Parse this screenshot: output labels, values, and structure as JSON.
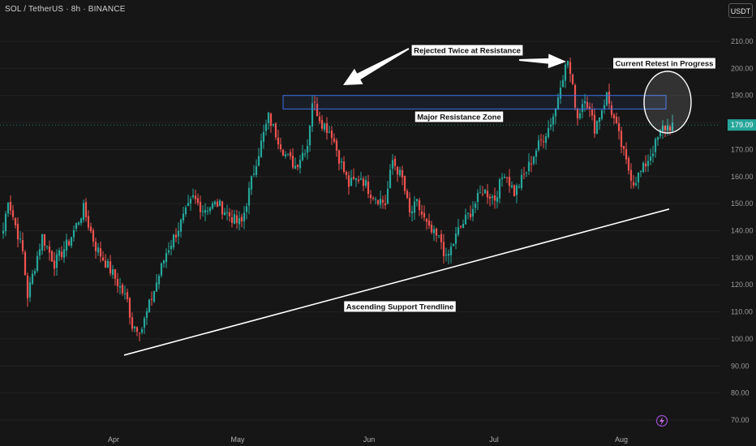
{
  "header": {
    "ticker": "SOL / TetherUS · 8h · BINANCE",
    "currency": "USDT"
  },
  "chart_data": {
    "type": "candlestick",
    "y_axis": {
      "ticks": [
        "210.00",
        "200.00",
        "190.00",
        "180.00",
        "170.00",
        "160.00",
        "150.00",
        "140.00",
        "130.00",
        "120.00",
        "110.00",
        "100.00",
        "90.00",
        "80.00",
        "70.00"
      ],
      "range": [
        68,
        213
      ]
    },
    "x_axis": {
      "ticks": [
        "Apr",
        "May",
        "Jun",
        "Jul",
        "Aug"
      ]
    },
    "last_price": "179.09",
    "colors": {
      "up": "#26a69a",
      "down": "#ef5350",
      "accent_resistance": "#3d6ee6",
      "last_price_tag": "#26a69a"
    },
    "price_path_waypoints": [
      [
        0,
        140
      ],
      [
        2,
        152
      ],
      [
        8,
        132
      ],
      [
        10,
        116
      ],
      [
        16,
        138
      ],
      [
        21,
        128
      ],
      [
        27,
        136
      ],
      [
        33,
        148
      ],
      [
        38,
        134
      ],
      [
        45,
        124
      ],
      [
        51,
        114
      ],
      [
        53,
        105
      ],
      [
        57,
        104
      ],
      [
        62,
        118
      ],
      [
        67,
        132
      ],
      [
        72,
        141
      ],
      [
        78,
        152
      ],
      [
        82,
        148
      ],
      [
        88,
        150
      ],
      [
        96,
        143
      ],
      [
        98,
        143
      ],
      [
        104,
        166
      ],
      [
        109,
        182
      ],
      [
        112,
        176
      ],
      [
        116,
        168
      ],
      [
        120,
        164
      ],
      [
        125,
        172
      ],
      [
        127,
        188
      ],
      [
        131,
        180
      ],
      [
        135,
        176
      ],
      [
        138,
        167
      ],
      [
        142,
        157
      ],
      [
        147,
        160
      ],
      [
        151,
        154
      ],
      [
        157,
        150
      ],
      [
        160,
        166
      ],
      [
        164,
        159
      ],
      [
        167,
        146
      ],
      [
        170,
        150
      ],
      [
        175,
        140
      ],
      [
        180,
        136
      ],
      [
        182,
        129
      ],
      [
        187,
        140
      ],
      [
        192,
        147
      ],
      [
        197,
        155
      ],
      [
        202,
        152
      ],
      [
        206,
        162
      ],
      [
        210,
        154
      ],
      [
        215,
        162
      ],
      [
        219,
        170
      ],
      [
        224,
        178
      ],
      [
        227,
        185
      ],
      [
        229,
        195
      ],
      [
        232,
        203
      ],
      [
        236,
        182
      ],
      [
        239,
        190
      ],
      [
        243,
        178
      ],
      [
        248,
        190
      ],
      [
        252,
        178
      ],
      [
        256,
        165
      ],
      [
        259,
        158
      ],
      [
        263,
        163
      ],
      [
        267,
        170
      ],
      [
        271,
        178
      ],
      [
        275,
        179
      ]
    ],
    "annotations": [
      {
        "text": "Rejected Twice at Resistance",
        "kind": "label"
      },
      {
        "text": "Current Retest in Progress",
        "kind": "label"
      },
      {
        "text": "Major Resistance Zone",
        "kind": "label",
        "zone_price": [
          185,
          190
        ]
      },
      {
        "text": "Ascending Support Trendline",
        "kind": "label",
        "trendline_price": [
          [
            53,
            94
          ],
          [
            275,
            148
          ]
        ]
      }
    ]
  }
}
